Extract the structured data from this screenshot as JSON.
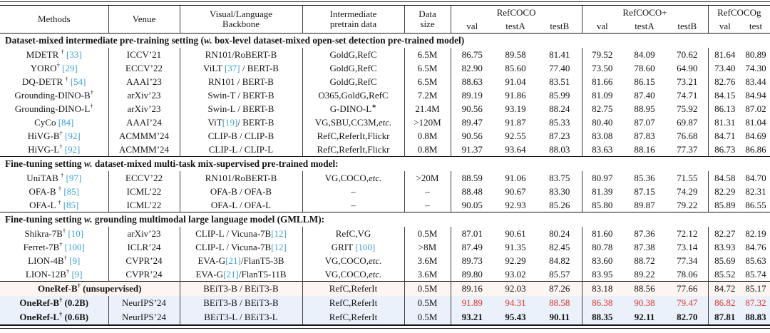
{
  "colors": {
    "citation": "#3ba3d6",
    "highlight_red": "#e4322b",
    "row_bg_pink": "#fdf5f2",
    "row_bg_blue": "#eaf1fa"
  },
  "header": {
    "columns": [
      {
        "id": "methods",
        "label": "Methods"
      },
      {
        "id": "venue",
        "label": "Venue"
      },
      {
        "id": "backbone",
        "label": "Visual/Language\nBackbone"
      },
      {
        "id": "pretrain",
        "label": "Intermediate\npretrain data"
      },
      {
        "id": "size",
        "label": "Data\nsize"
      }
    ],
    "groups": [
      {
        "id": "refcoco",
        "label": "RefCOCO",
        "subs": [
          "val",
          "testA",
          "testB"
        ]
      },
      {
        "id": "refcoco-plus",
        "label": "RefCOCO+",
        "subs": [
          "val",
          "testA",
          "testB"
        ]
      },
      {
        "id": "refcocog",
        "label": "RefCOCOg",
        "subs": [
          "val",
          "test"
        ]
      }
    ]
  },
  "sections": [
    {
      "heading": "Dataset-mixed intermediate pre-training setting (w. box-level dataset-mixed open-set detection pre-trained model)",
      "rows": [
        {
          "method": "MDETR † [33]",
          "venue": "ICCV’21",
          "backbone": "RN101/RoBERT-B",
          "pretrain": "GoldG,RefC",
          "size": "6.5M",
          "scores": [
            "86.75",
            "89.58",
            "81.41",
            "79.52",
            "84.09",
            "70.62",
            "81.64",
            "80.89"
          ]
        },
        {
          "method": "YORO† [29]",
          "venue": "ECCV’22",
          "backbone": "ViLT [37] / BERT-B",
          "pretrain": "GoldG,RefC",
          "size": "6.5M",
          "scores": [
            "82.90",
            "85.60",
            "77.40",
            "73.50",
            "78.60",
            "64.90",
            "73.40",
            "74.30"
          ]
        },
        {
          "method": "DQ-DETR † [54]",
          "venue": "AAAI’23",
          "backbone": "RN101 / BERT-B",
          "pretrain": "GoldG,RefC",
          "size": "6.5M",
          "scores": [
            "88.63",
            "91.04",
            "83.51",
            "81.66",
            "86.15",
            "73.21",
            "82.76",
            "83.44"
          ]
        },
        {
          "method": "Grounding-DINO-B†",
          "venue": "arXiv’23",
          "backbone": "Swin-T / BERT-B",
          "pretrain": "O365,GoldG,RefC",
          "size": "7.2M",
          "scores": [
            "89.19",
            "91.86",
            "85.99",
            "81.09",
            "87.40",
            "74.71",
            "84.15",
            "84.94"
          ]
        },
        {
          "method": "Grounding-DINO-L†",
          "venue": "arXiv’23",
          "backbone": "Swin-L / BERT-B",
          "pretrain": "G-DINO-L*",
          "size": "21.4M",
          "scores": [
            "90.56",
            "93.19",
            "88.24",
            "82.75",
            "88.95",
            "75.92",
            "86.13",
            "87.02"
          ]
        },
        {
          "method": "CyCo [84]",
          "venue": "AAAI’24",
          "backbone": "ViT[19]/ BERT-B",
          "pretrain": "VG,SBU,CC3M,etc.",
          "size": ">120M",
          "scores": [
            "89.47",
            "91.87",
            "85.33",
            "80.40",
            "87.07",
            "69.87",
            "81.31",
            "81.04"
          ]
        },
        {
          "method": "HiVG-B† [92]",
          "venue": "ACMMM’24",
          "backbone": "CLIP-B / CLIP-B",
          "pretrain": "RefC,ReferIt,Flickr",
          "size": "0.8M",
          "scores": [
            "90.56",
            "92.55",
            "87.23",
            "83.08",
            "87.83",
            "76.68",
            "84.71",
            "84.69"
          ]
        },
        {
          "method": "HiVG-L† [92]",
          "venue": "ACMMM’24",
          "backbone": "CLIP-L / CLIP-L",
          "pretrain": "RefC,ReferIt,Flickr",
          "size": "0.8M",
          "scores": [
            "91.37",
            "93.64",
            "88.03",
            "83.63",
            "88.16",
            "77.37",
            "86.73",
            "86.86"
          ]
        }
      ]
    },
    {
      "heading": "Fine-tuning setting w. dataset-mixed multi-task mix-supervised pre-trained model:",
      "rows": [
        {
          "method": "UniTAB † [97]",
          "venue": "ECCV’22",
          "backbone": "RN101/RoBERT-B",
          "pretrain": "VG,COCO,etc.",
          "size": ">20M",
          "scores": [
            "88.59",
            "91.06",
            "83.75",
            "80.97",
            "85.36",
            "71.55",
            "84.58",
            "84.70"
          ]
        },
        {
          "method": "OFA-B † [85]",
          "venue": "ICML’22",
          "backbone": "OFA-B / OFA-B",
          "pretrain": "–",
          "size": "–",
          "scores": [
            "88.48",
            "90.67",
            "83.30",
            "81.39",
            "87.15",
            "74.29",
            "82.29",
            "82.31"
          ]
        },
        {
          "method": "OFA-L † [85]",
          "venue": "ICML’22",
          "backbone": "OFA-L / OFA-L",
          "pretrain": "–",
          "size": "–",
          "scores": [
            "90.05",
            "92.93",
            "85.26",
            "85.80",
            "89.87",
            "79.22",
            "85.89",
            "86.55"
          ]
        }
      ]
    },
    {
      "heading": "Fine-tuning setting w. grounding multimodal large language model (GMLLM):",
      "rows": [
        {
          "method": "Shikra-7B† [10]",
          "venue": "arXiv’23",
          "backbone": "CLIP-L / Vicuna-7B[12]",
          "pretrain": "RefC,VG",
          "size": "0.5M",
          "scores": [
            "87.01",
            "90.61",
            "80.24",
            "81.60",
            "87.36",
            "72.12",
            "82.27",
            "82.19"
          ]
        },
        {
          "method": "Ferret-7B† [100]",
          "venue": "ICLR’24",
          "backbone": "CLIP-L / Vicuna-7B[12]",
          "pretrain": "GRIT [100]",
          "size": ">8M",
          "scores": [
            "87.49",
            "91.35",
            "82.45",
            "80.78",
            "87.38",
            "73.14",
            "83.93",
            "84.76"
          ]
        },
        {
          "method": "LION-4B† [9]",
          "venue": "CVPR’24",
          "backbone": "EVA-G[21]/FlanT5-3B",
          "pretrain": "VG,COCO,etc.",
          "size": "3.6M",
          "scores": [
            "89.73",
            "92.29",
            "84.82",
            "83.60",
            "88.72",
            "77.34",
            "85.69",
            "85.63"
          ]
        },
        {
          "method": "LION-12B† [9]",
          "venue": "CVPR’24",
          "backbone": "EVA-G[21]/FlanT5-11B",
          "pretrain": "VG,COCO,etc.",
          "size": "3.6M",
          "scores": [
            "89.80",
            "93.02",
            "85.57",
            "83.95",
            "89.22",
            "78.06",
            "85.52",
            "85.74"
          ]
        }
      ]
    },
    {
      "heading": null,
      "rows": [
        {
          "method": "OneRef-B† (unsupervised)",
          "venue": null,
          "span_method_venue": true,
          "bold_method": true,
          "bg": "pink",
          "backbone": "BEiT3-B / BEiT3-B",
          "pretrain": "RefC,ReferIt",
          "size": "0.5M",
          "scores": [
            "89.16",
            "92.03",
            "87.26",
            "83.18",
            "88.56",
            "77.66",
            "84.72",
            "85.17"
          ]
        },
        {
          "method": "OneRef-B† (0.2B)",
          "venue": "NeurIPS’24",
          "bold_method": true,
          "bg": "blue",
          "score_style": "red",
          "backbone": "BEiT3-B / BEiT3-B",
          "pretrain": "RefC,ReferIt",
          "size": "0.5M",
          "scores": [
            "91.89",
            "94.31",
            "88.58",
            "86.38",
            "90.38",
            "79.47",
            "86.82",
            "87.32"
          ]
        },
        {
          "method": "OneRef-L† (0.6B)",
          "venue": "NeurIPS’24",
          "bold_method": true,
          "bg": "blue",
          "score_style": "bold",
          "backbone": "BEiT3-L / BEiT3-L",
          "pretrain": "RefC,ReferIt",
          "size": "0.5M",
          "scores": [
            "93.21",
            "95.43",
            "90.11",
            "88.35",
            "92.11",
            "82.70",
            "87.81",
            "88.83"
          ]
        }
      ]
    }
  ]
}
